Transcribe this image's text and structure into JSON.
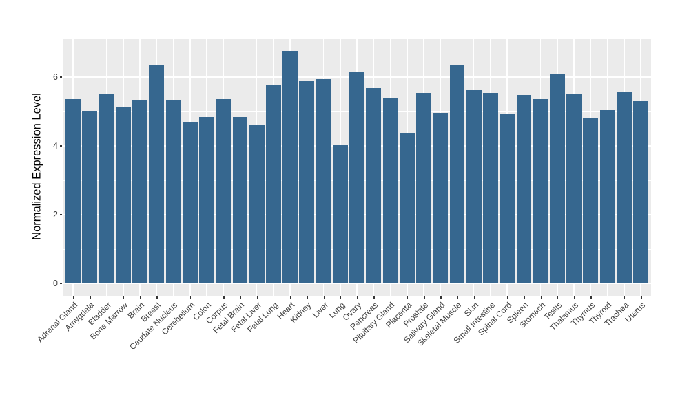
{
  "figure": {
    "background_color": "#FFFFFF",
    "panel_background_color": "#EBEBEB",
    "gridline_color": "#FFFFFF",
    "bar_color": "#36678F",
    "tick_mark_color": "#333333",
    "axis_text_color": "#404040"
  },
  "chart_data": {
    "type": "bar",
    "title": "",
    "xlabel": "",
    "ylabel": "Normalized Expression Level",
    "legend": "none",
    "grid": "on",
    "ylim": [
      -0.35,
      7.1
    ],
    "y_major_ticks": [
      0,
      2,
      4,
      6
    ],
    "y_minor_gridlines": [
      1,
      3,
      5,
      7
    ],
    "categories": [
      "Adrenal Gland",
      "Amygdala",
      "Bladder",
      "Bone Marrow",
      "Brain",
      "Breast",
      "Caudate Nucleus",
      "Cerebellum",
      "Colon",
      "Corpus",
      "Fetal Brain",
      "Fetal Liver",
      "Fetal Lung",
      "Heart",
      "Kidney",
      "Liver",
      "Lung",
      "Ovary",
      "Pancreas",
      "Pituitary Gland",
      "Placenta",
      "Prostate",
      "Salivary Gland",
      "Skeletal Muscle",
      "Skin",
      "Small Intestine",
      "Spinal Cord",
      "Spleen",
      "Stomach",
      "Testis",
      "Thalamus",
      "Thymus",
      "Thyroid",
      "Trachea",
      "Uterus"
    ],
    "values": [
      5.37,
      5.03,
      5.53,
      5.13,
      5.33,
      6.37,
      5.35,
      4.7,
      4.85,
      5.37,
      4.85,
      4.63,
      5.78,
      6.76,
      5.89,
      5.94,
      4.02,
      6.17,
      5.69,
      5.39,
      4.39,
      5.55,
      4.97,
      6.35,
      5.62,
      5.55,
      4.93,
      5.49,
      5.36,
      6.09,
      5.52,
      4.83,
      5.04,
      5.57,
      5.31
    ]
  }
}
